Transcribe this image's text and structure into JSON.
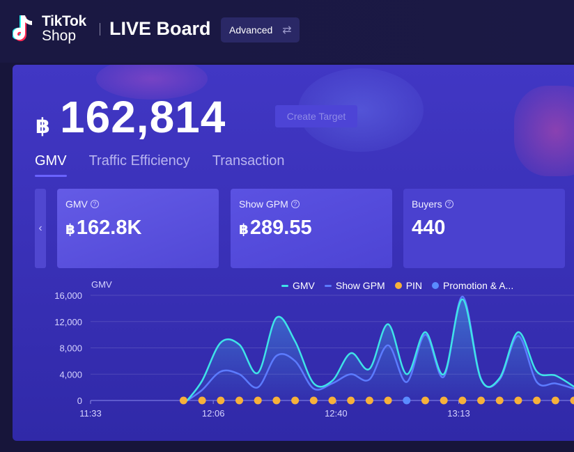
{
  "header": {
    "logo_line1": "TikTok",
    "logo_line2": "Shop",
    "title": "LIVE Board",
    "advanced_label": "Advanced",
    "swap_icon": "⇄"
  },
  "summary": {
    "currency": "฿",
    "gmv_total": "162,814",
    "create_target_label": "Create Target"
  },
  "tabs": [
    {
      "label": "GMV",
      "active": true
    },
    {
      "label": "Traffic Efficiency",
      "active": false
    },
    {
      "label": "Transaction",
      "active": false
    }
  ],
  "cards": [
    {
      "label": "GMV",
      "currency": "฿",
      "value": "162.8K"
    },
    {
      "label": "Show GPM",
      "currency": "฿",
      "value": "289.55"
    },
    {
      "label": "Buyers",
      "currency": "",
      "value": "440"
    }
  ],
  "scroll_left_icon": "‹",
  "help_icon": "?",
  "colors": {
    "gmv_line": "#3fe3e8",
    "gpm_line": "#5c7bff",
    "pin_dot": "#f7b13b",
    "promo_dot": "#5a8cff"
  },
  "chart_data": {
    "type": "line",
    "ylabel": "GMV",
    "ylim": [
      0,
      16000
    ],
    "yticks": [
      0,
      4000,
      8000,
      12000,
      16000
    ],
    "ytick_labels": [
      "0",
      "4,000",
      "8,000",
      "12,000",
      "16,000"
    ],
    "xlim": [
      0,
      26
    ],
    "xticks": [
      0,
      6.6,
      13.2,
      19.8
    ],
    "xtick_labels": [
      "11:33",
      "12:06",
      "12:40",
      "13:13"
    ],
    "legend": [
      "GMV",
      "Show GPM",
      "PIN",
      "Promotion & A..."
    ],
    "series": [
      {
        "name": "GMV",
        "x": [
          5.2,
          6.0,
          7.0,
          8.0,
          9.0,
          10.0,
          11.0,
          12.0,
          13.0,
          14.0,
          15.0,
          16.0,
          17.0,
          18.0,
          19.0,
          20.0,
          21.0,
          22.0,
          23.0,
          24.0,
          25.0,
          26.0
        ],
        "values": [
          0,
          3000,
          8800,
          8500,
          4200,
          12600,
          9000,
          2600,
          3000,
          7200,
          4800,
          11600,
          4000,
          10400,
          4000,
          15400,
          3200,
          3400,
          10400,
          4400,
          3800,
          2100
        ]
      },
      {
        "name": "Show GPM",
        "x": [
          5.2,
          6.0,
          7.0,
          8.0,
          9.0,
          10.0,
          11.0,
          12.0,
          13.0,
          14.0,
          15.0,
          16.0,
          17.0,
          18.0,
          19.0,
          20.0,
          21.0,
          22.0,
          23.0,
          24.0,
          25.0,
          26.0
        ],
        "values": [
          0,
          1600,
          4400,
          4000,
          2000,
          6800,
          6000,
          1800,
          2600,
          4000,
          3200,
          8400,
          2800,
          10000,
          3600,
          15800,
          3300,
          3200,
          9800,
          2800,
          2600,
          1800
        ]
      },
      {
        "name": "PIN",
        "x": [
          5.0,
          6.0,
          7.0,
          8.0,
          9.0,
          10.0,
          11.0,
          12.0,
          13.0,
          14.0,
          15.0,
          16.0,
          18.0,
          19.0,
          20.0,
          21.0,
          22.0,
          23.0,
          24.0,
          25.0,
          26.0
        ],
        "values": [
          0,
          0,
          0,
          0,
          0,
          0,
          0,
          0,
          0,
          0,
          0,
          0,
          0,
          0,
          0,
          0,
          0,
          0,
          0,
          0,
          0
        ]
      },
      {
        "name": "Promotion & A...",
        "x": [
          17.0
        ],
        "values": [
          0
        ]
      }
    ]
  }
}
